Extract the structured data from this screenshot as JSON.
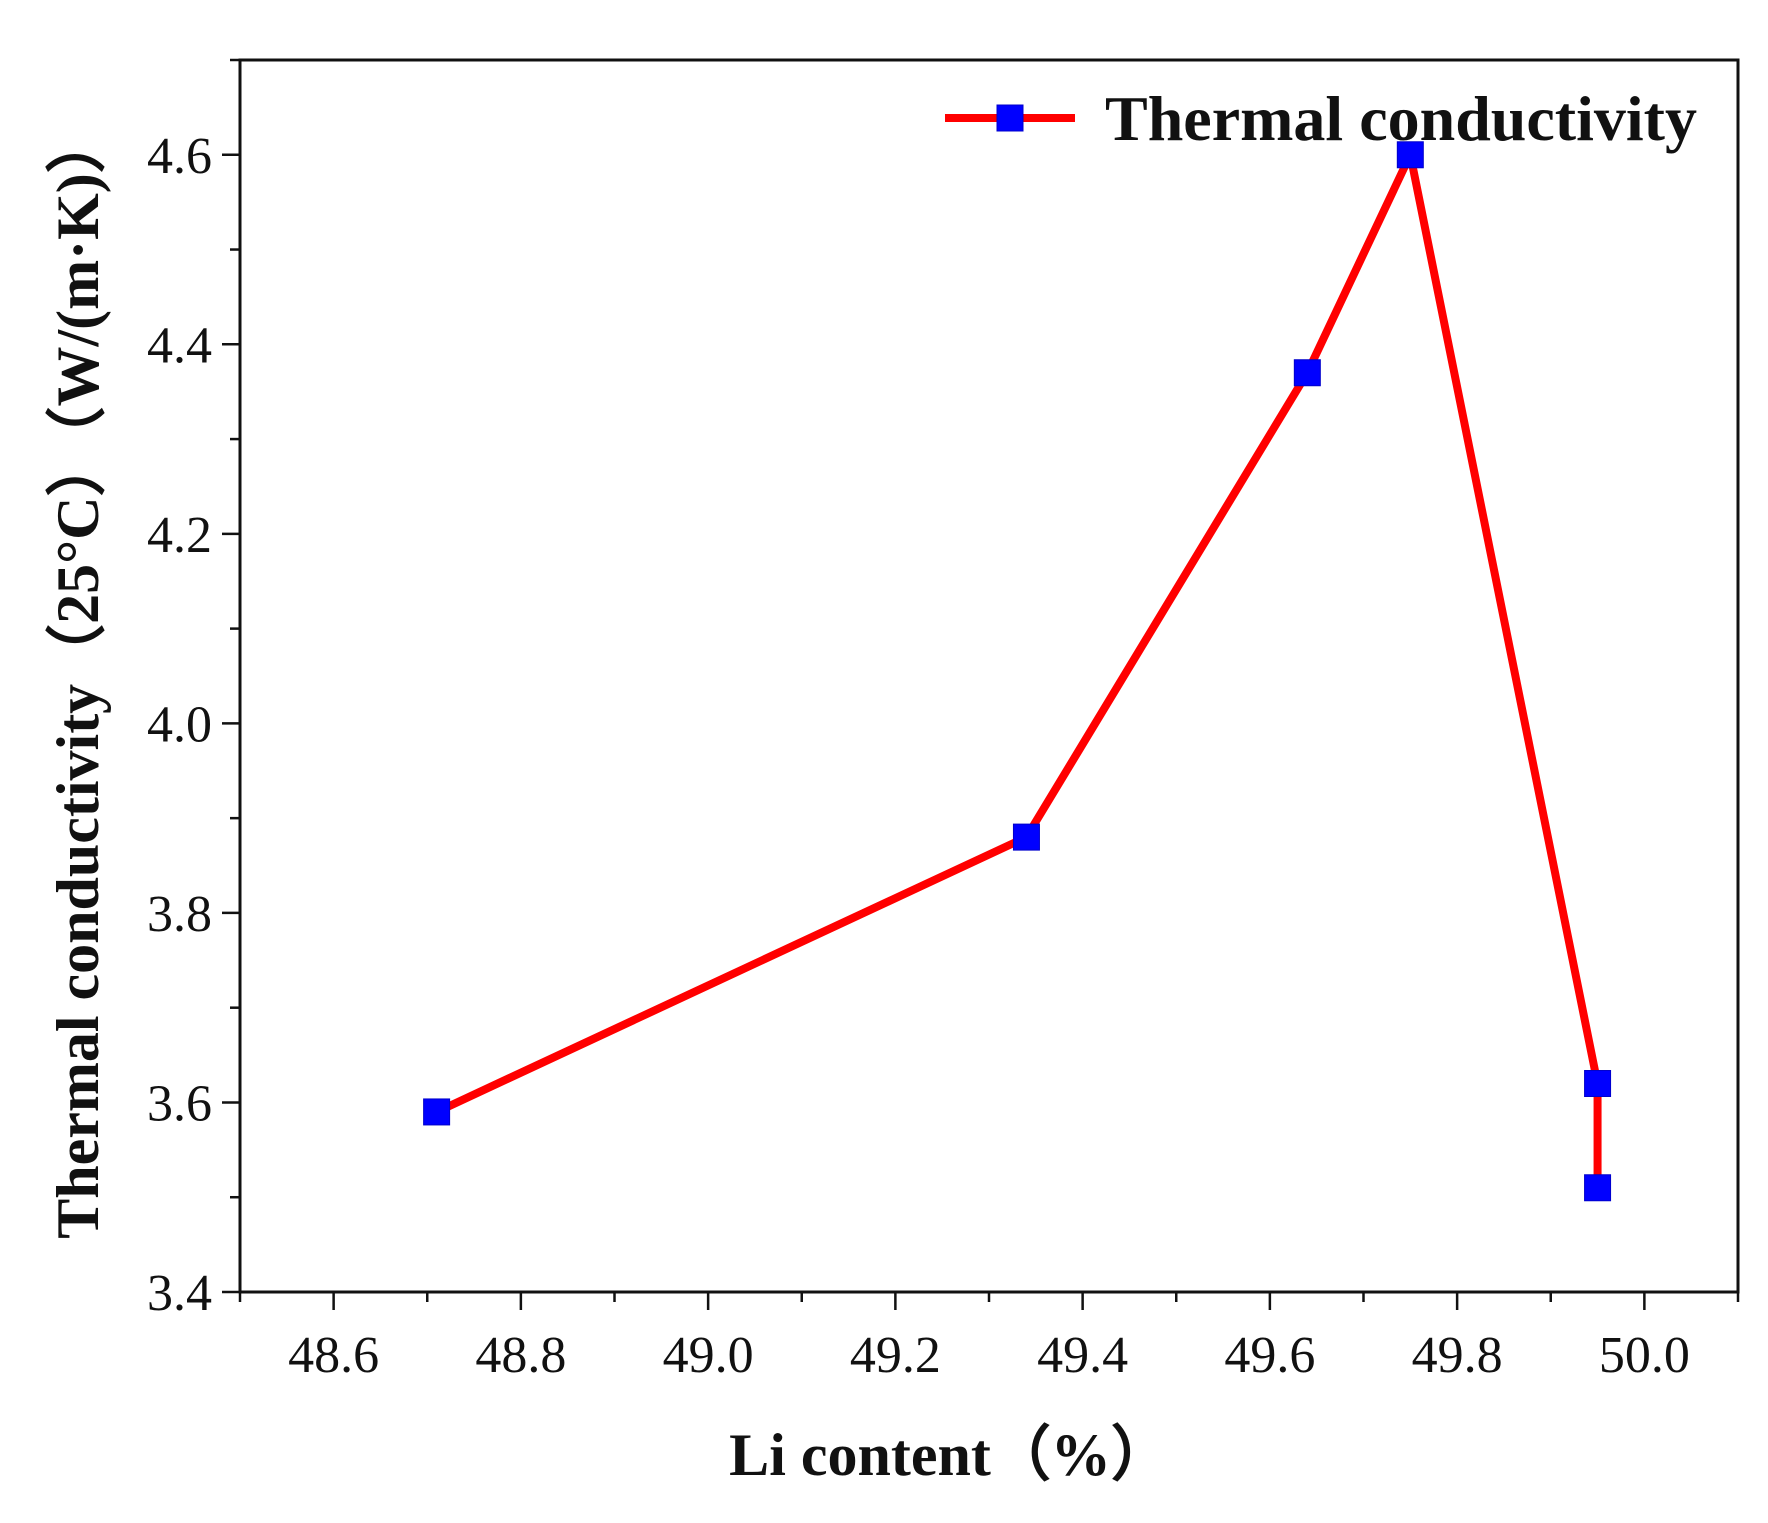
{
  "chart_data": {
    "type": "line",
    "title": "",
    "xlabel": "Li content（%）",
    "ylabel": "Thermal conductivity（25°C）（W/(m·K)）",
    "xlim": [
      48.5,
      50.1
    ],
    "ylim": [
      3.4,
      4.7
    ],
    "xticks": [
      48.6,
      48.8,
      49.0,
      49.2,
      49.4,
      49.6,
      49.8,
      50.0
    ],
    "yticks": [
      3.4,
      3.6,
      3.8,
      4.0,
      4.2,
      4.4,
      4.6
    ],
    "grid": false,
    "legend_position": "top-right",
    "series": [
      {
        "name": "Thermal conductivity",
        "line_color": "#ff0000",
        "marker_color": "#0000ff",
        "marker": "square",
        "x": [
          48.71,
          49.34,
          49.64,
          49.75,
          49.95,
          49.95
        ],
        "y": [
          3.59,
          3.88,
          4.37,
          4.6,
          3.62,
          3.51
        ]
      }
    ]
  }
}
